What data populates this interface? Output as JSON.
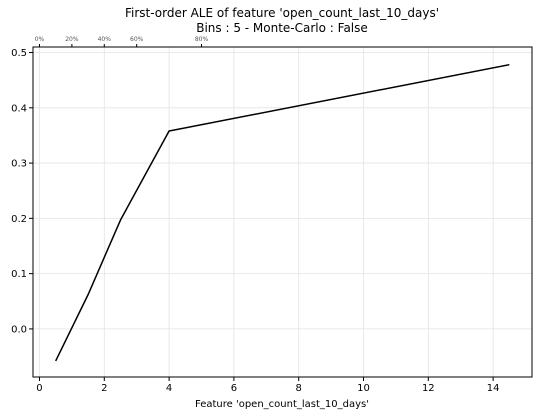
{
  "chart_data": {
    "type": "line",
    "title": "First-order ALE of feature 'open_count_last_10_days'",
    "subtitle": "Bins : 5 - Monte-Carlo : False",
    "xlabel": "Feature 'open_count_last_10_days'",
    "ylabel": "",
    "xlim": [
      -0.2,
      15.2
    ],
    "ylim": [
      -0.087,
      0.51
    ],
    "x_ticks": [
      0,
      2,
      4,
      6,
      8,
      10,
      12,
      14
    ],
    "y_ticks": [
      0.0,
      0.1,
      0.2,
      0.3,
      0.4,
      0.5
    ],
    "grid": true,
    "series": [
      {
        "color": "#000000",
        "x": [
          0.5,
          1.5,
          2.5,
          4.0,
          14.5
        ],
        "y": [
          -0.058,
          0.062,
          0.197,
          0.358,
          0.478
        ]
      }
    ],
    "quantiles": {
      "labels": [
        "0%",
        "20%",
        "40%",
        "60%",
        "80%"
      ],
      "x": [
        0,
        1,
        2,
        3,
        5
      ]
    }
  }
}
